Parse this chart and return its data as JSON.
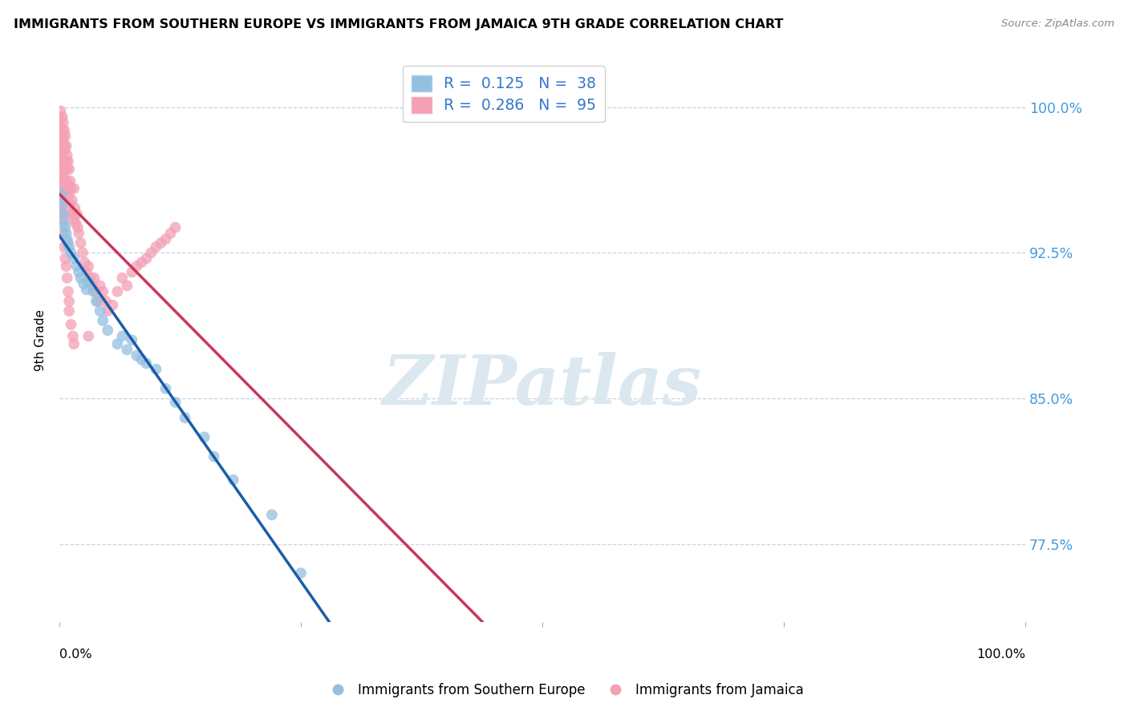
{
  "title": "IMMIGRANTS FROM SOUTHERN EUROPE VS IMMIGRANTS FROM JAMAICA 9TH GRADE CORRELATION CHART",
  "source": "Source: ZipAtlas.com",
  "ylabel": "9th Grade",
  "right_ytick_vals": [
    0.775,
    0.85,
    0.925,
    1.0
  ],
  "right_ytick_labels": [
    "77.5%",
    "85.0%",
    "92.5%",
    "100.0%"
  ],
  "blue_label": "Immigrants from Southern Europe",
  "pink_label": "Immigrants from Jamaica",
  "blue_R": 0.125,
  "blue_N": 38,
  "pink_R": 0.286,
  "pink_N": 95,
  "blue_color": "#93c0e0",
  "pink_color": "#f4a0b5",
  "blue_line_color": "#1a5ca8",
  "pink_line_color": "#c83858",
  "legend_text_color": "#3377cc",
  "right_label_color": "#4499dd",
  "background_color": "#ffffff",
  "watermark_text": "ZIPatlas",
  "watermark_color": "#dce8f0",
  "xlim": [
    0.0,
    1.0
  ],
  "ylim": [
    0.735,
    1.025
  ],
  "blue_scatter_x": [
    0.002,
    0.003,
    0.004,
    0.005,
    0.006,
    0.007,
    0.008,
    0.009,
    0.01,
    0.012,
    0.015,
    0.018,
    0.02,
    0.022,
    0.025,
    0.028,
    0.03,
    0.035,
    0.038,
    0.042,
    0.045,
    0.05,
    0.06,
    0.065,
    0.07,
    0.075,
    0.08,
    0.085,
    0.09,
    0.1,
    0.11,
    0.12,
    0.13,
    0.15,
    0.16,
    0.18,
    0.22,
    0.25
  ],
  "blue_scatter_y": [
    0.955,
    0.95,
    0.945,
    0.94,
    0.938,
    0.935,
    0.932,
    0.93,
    0.928,
    0.925,
    0.922,
    0.918,
    0.915,
    0.912,
    0.909,
    0.906,
    0.91,
    0.905,
    0.9,
    0.895,
    0.89,
    0.885,
    0.878,
    0.882,
    0.875,
    0.88,
    0.872,
    0.87,
    0.868,
    0.865,
    0.855,
    0.848,
    0.84,
    0.83,
    0.82,
    0.808,
    0.79,
    0.76
  ],
  "pink_scatter_x": [
    0.001,
    0.001,
    0.001,
    0.001,
    0.001,
    0.002,
    0.002,
    0.002,
    0.002,
    0.002,
    0.003,
    0.003,
    0.003,
    0.003,
    0.003,
    0.004,
    0.004,
    0.004,
    0.004,
    0.005,
    0.005,
    0.005,
    0.005,
    0.006,
    0.006,
    0.006,
    0.006,
    0.007,
    0.007,
    0.007,
    0.008,
    0.008,
    0.008,
    0.009,
    0.009,
    0.01,
    0.01,
    0.011,
    0.011,
    0.012,
    0.012,
    0.013,
    0.014,
    0.015,
    0.015,
    0.016,
    0.017,
    0.018,
    0.019,
    0.02,
    0.022,
    0.024,
    0.026,
    0.028,
    0.03,
    0.032,
    0.034,
    0.036,
    0.038,
    0.04,
    0.042,
    0.045,
    0.048,
    0.05,
    0.055,
    0.06,
    0.065,
    0.07,
    0.075,
    0.08,
    0.085,
    0.09,
    0.095,
    0.1,
    0.105,
    0.11,
    0.115,
    0.12,
    0.001,
    0.002,
    0.002,
    0.003,
    0.004,
    0.004,
    0.005,
    0.006,
    0.007,
    0.008,
    0.009,
    0.01,
    0.01,
    0.012,
    0.014,
    0.015,
    0.03
  ],
  "pink_scatter_y": [
    0.998,
    0.994,
    0.99,
    0.985,
    0.98,
    0.975,
    0.972,
    0.968,
    0.963,
    0.958,
    0.995,
    0.988,
    0.982,
    0.976,
    0.97,
    0.992,
    0.985,
    0.978,
    0.965,
    0.988,
    0.98,
    0.972,
    0.962,
    0.985,
    0.978,
    0.968,
    0.955,
    0.98,
    0.972,
    0.962,
    0.975,
    0.968,
    0.958,
    0.972,
    0.96,
    0.968,
    0.955,
    0.962,
    0.95,
    0.958,
    0.945,
    0.952,
    0.945,
    0.958,
    0.942,
    0.948,
    0.94,
    0.945,
    0.938,
    0.935,
    0.93,
    0.925,
    0.92,
    0.915,
    0.918,
    0.912,
    0.908,
    0.912,
    0.905,
    0.9,
    0.908,
    0.905,
    0.9,
    0.895,
    0.898,
    0.905,
    0.912,
    0.908,
    0.915,
    0.918,
    0.92,
    0.922,
    0.925,
    0.928,
    0.93,
    0.932,
    0.935,
    0.938,
    0.96,
    0.952,
    0.945,
    0.948,
    0.942,
    0.935,
    0.928,
    0.922,
    0.918,
    0.912,
    0.905,
    0.9,
    0.895,
    0.888,
    0.882,
    0.878,
    0.882
  ]
}
